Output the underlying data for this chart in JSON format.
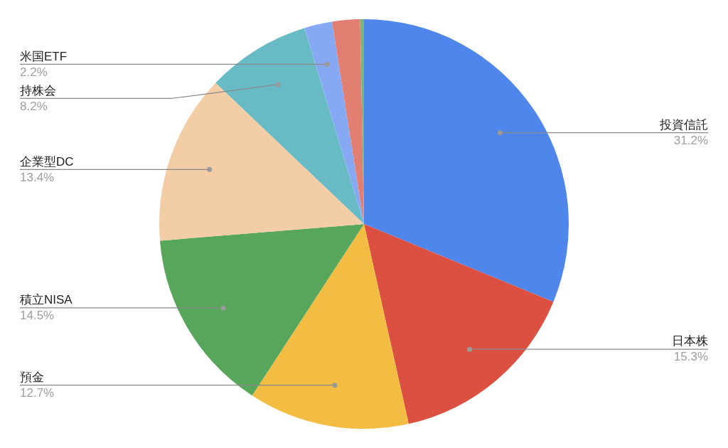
{
  "chart_data": {
    "type": "pie",
    "categories": [
      "投資信託",
      "日本株",
      "預金",
      "積立NISA",
      "企業型DC",
      "持株会",
      "米国ETF",
      null,
      null
    ],
    "values": [
      31.2,
      15.3,
      12.7,
      14.5,
      13.4,
      8.2,
      2.2,
      2.2,
      0.3
    ],
    "colors": [
      "#4f86ec",
      "#db5040",
      "#f2bd42",
      "#58a55c",
      "#f2cda5",
      "#68bac4",
      "#87a9f3",
      "#e07f72",
      "#76b77a"
    ],
    "value_labels": [
      "31.2%",
      "15.3%",
      "12.7%",
      "14.5%",
      "13.4%",
      "8.2%",
      "2.2%",
      null,
      null
    ],
    "legend": false
  }
}
